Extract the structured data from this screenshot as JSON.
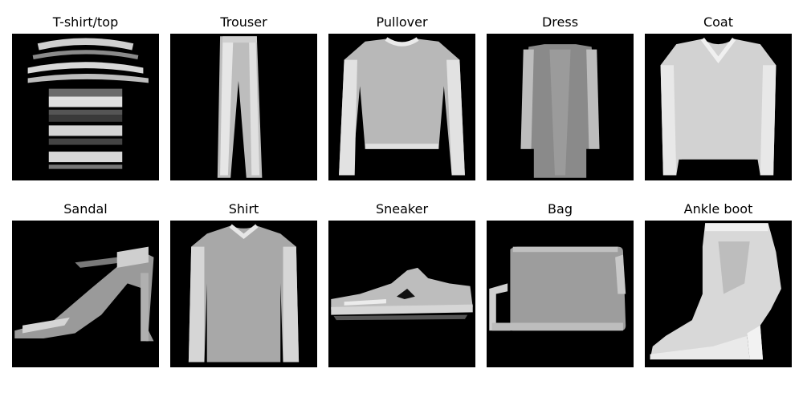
{
  "panels": [
    {
      "label": "T-shirt/top",
      "icon": "tshirt-top-image"
    },
    {
      "label": "Trouser",
      "icon": "trouser-image"
    },
    {
      "label": "Pullover",
      "icon": "pullover-image"
    },
    {
      "label": "Dress",
      "icon": "dress-image"
    },
    {
      "label": "Coat",
      "icon": "coat-image"
    },
    {
      "label": "Sandal",
      "icon": "sandal-image"
    },
    {
      "label": "Shirt",
      "icon": "shirt-image"
    },
    {
      "label": "Sneaker",
      "icon": "sneaker-image"
    },
    {
      "label": "Bag",
      "icon": "bag-image"
    },
    {
      "label": "Ankle boot",
      "icon": "ankle-boot-image"
    }
  ],
  "colors": {
    "background": "#ffffff",
    "image_background": "#000000"
  }
}
